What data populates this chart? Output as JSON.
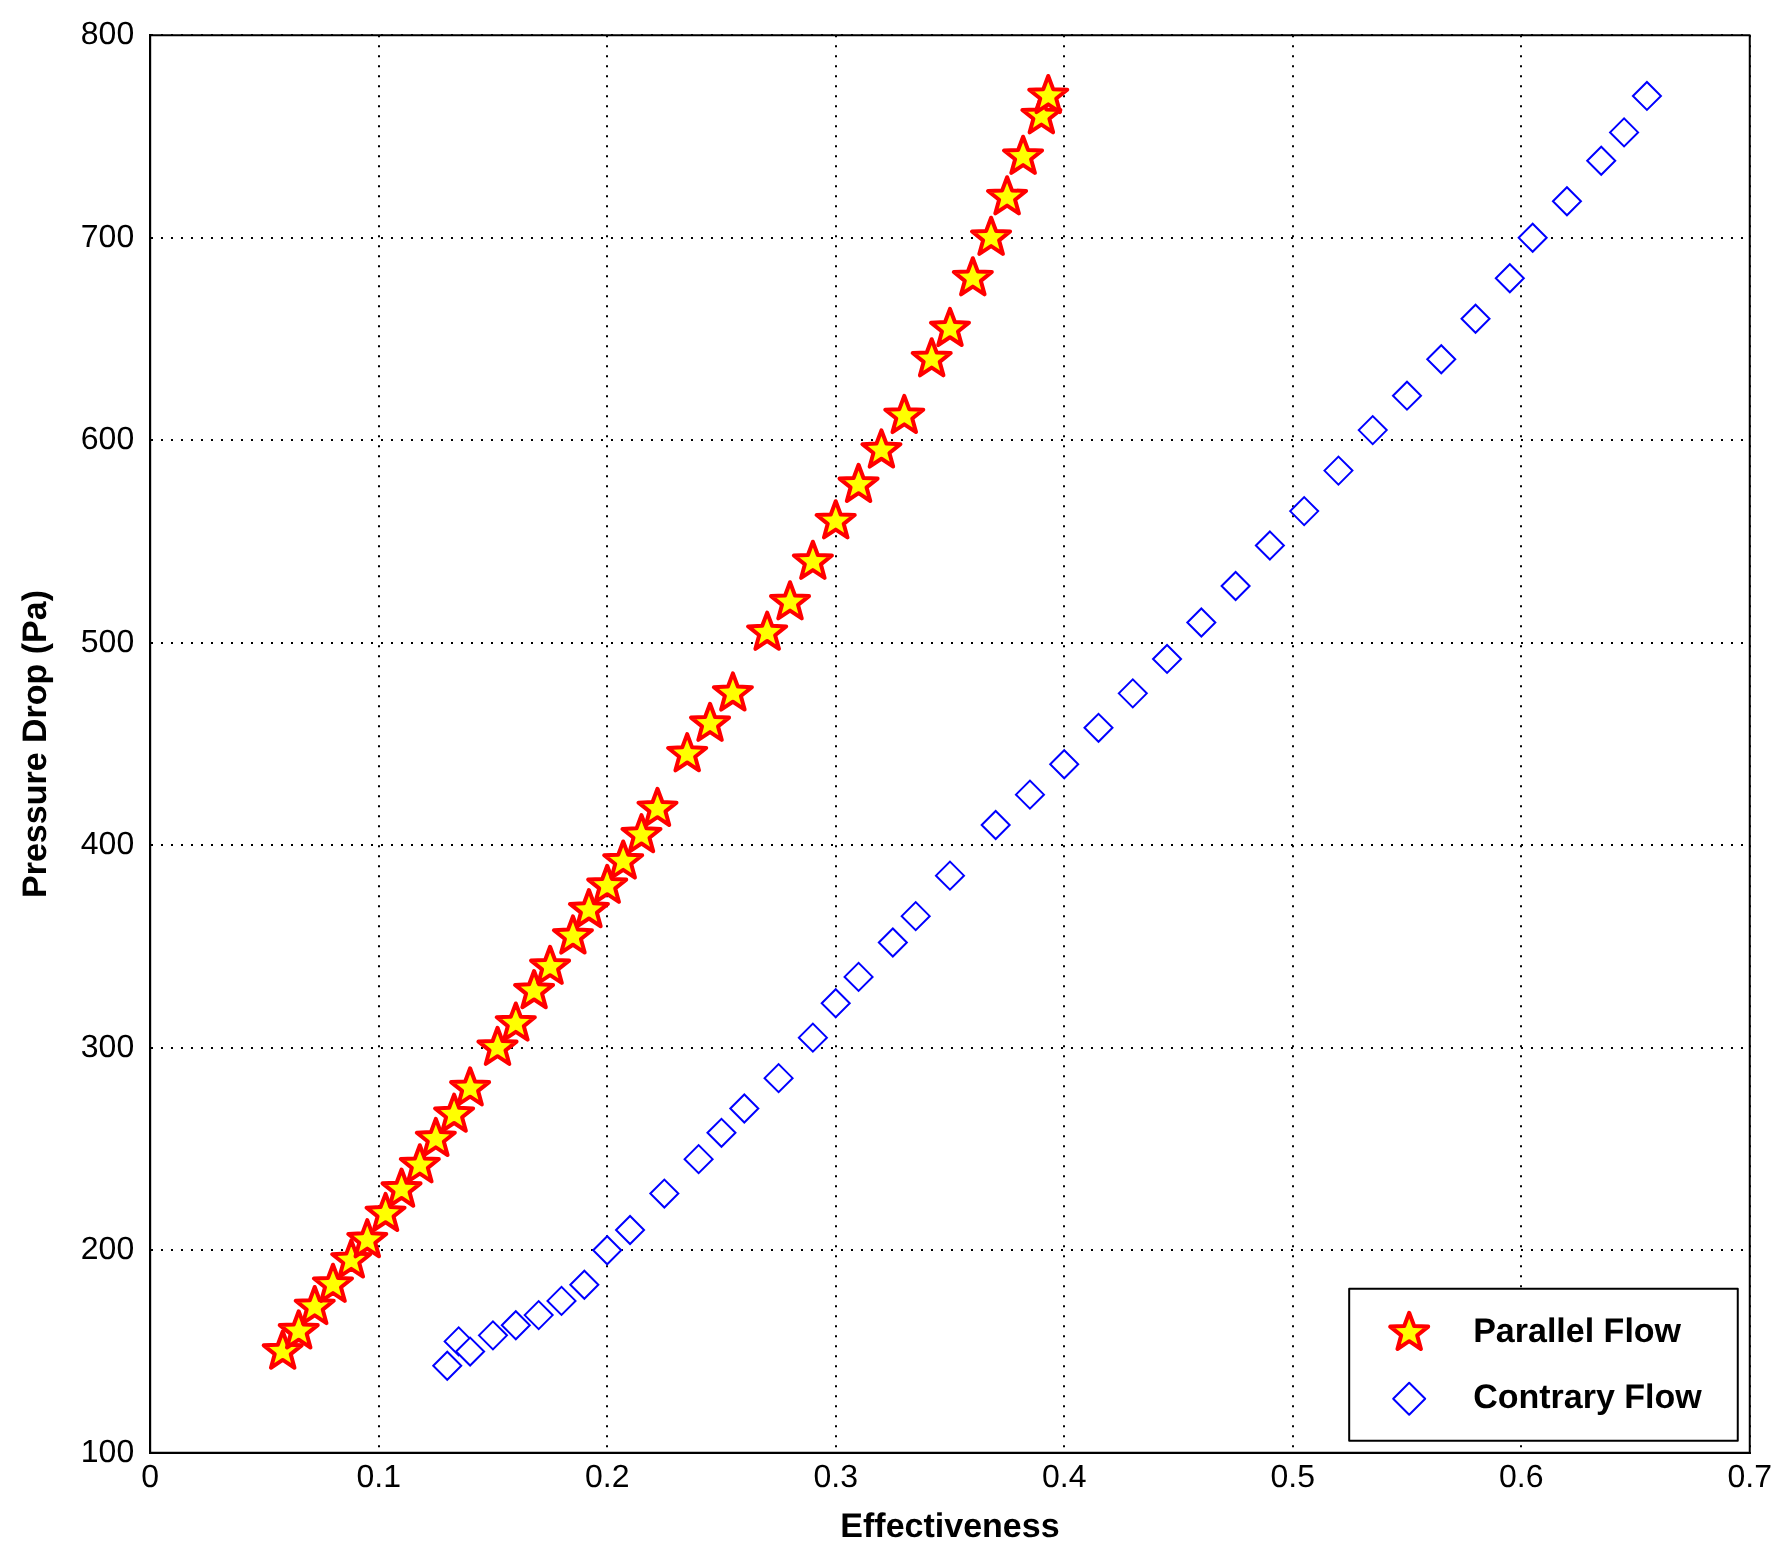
{
  "chart_data": {
    "type": "scatter",
    "xlabel": "Effectiveness",
    "ylabel": "Pressure Drop (Pa)",
    "xlim": [
      0,
      0.7
    ],
    "xticks": [
      0,
      0.1,
      0.2,
      0.3,
      0.4,
      0.5,
      0.6,
      0.7
    ],
    "ylim": [
      100,
      800
    ],
    "yticks": [
      100,
      200,
      300,
      400,
      500,
      600,
      700,
      800
    ],
    "grid": true,
    "legend": "bottom right",
    "series": [
      {
        "name": "Parallel Flow",
        "color": "#ff0000",
        "marker": "star",
        "x": [
          0.058,
          0.065,
          0.072,
          0.08,
          0.088,
          0.095,
          0.103,
          0.11,
          0.118,
          0.125,
          0.133,
          0.14,
          0.152,
          0.16,
          0.168,
          0.175,
          0.185,
          0.192,
          0.2,
          0.207,
          0.215,
          0.222,
          0.235,
          0.245,
          0.255,
          0.27,
          0.28,
          0.29,
          0.3,
          0.31,
          0.32,
          0.33,
          0.342,
          0.35,
          0.36,
          0.368,
          0.375,
          0.382,
          0.39,
          0.393
        ],
        "values": [
          150,
          160,
          172,
          183,
          195,
          205,
          218,
          230,
          242,
          255,
          267,
          280,
          300,
          312,
          328,
          340,
          355,
          368,
          380,
          392,
          405,
          418,
          445,
          460,
          475,
          505,
          520,
          540,
          560,
          578,
          595,
          612,
          640,
          655,
          680,
          700,
          720,
          740,
          760,
          770
        ]
      },
      {
        "name": "Contrary Flow",
        "color": "#0000ff",
        "marker": "diamond",
        "x": [
          0.13,
          0.135,
          0.14,
          0.15,
          0.16,
          0.17,
          0.18,
          0.19,
          0.2,
          0.21,
          0.225,
          0.24,
          0.25,
          0.26,
          0.275,
          0.29,
          0.3,
          0.31,
          0.325,
          0.335,
          0.35,
          0.37,
          0.385,
          0.4,
          0.415,
          0.43,
          0.445,
          0.46,
          0.475,
          0.49,
          0.505,
          0.52,
          0.535,
          0.55,
          0.565,
          0.58,
          0.595,
          0.605,
          0.62,
          0.635,
          0.645,
          0.655
        ],
        "values": [
          143,
          155,
          150,
          158,
          163,
          168,
          175,
          183,
          200,
          210,
          228,
          245,
          258,
          270,
          285,
          305,
          322,
          335,
          352,
          365,
          385,
          410,
          425,
          440,
          458,
          475,
          492,
          510,
          528,
          548,
          565,
          585,
          605,
          622,
          640,
          660,
          680,
          700,
          718,
          738,
          752,
          770
        ]
      }
    ]
  }
}
